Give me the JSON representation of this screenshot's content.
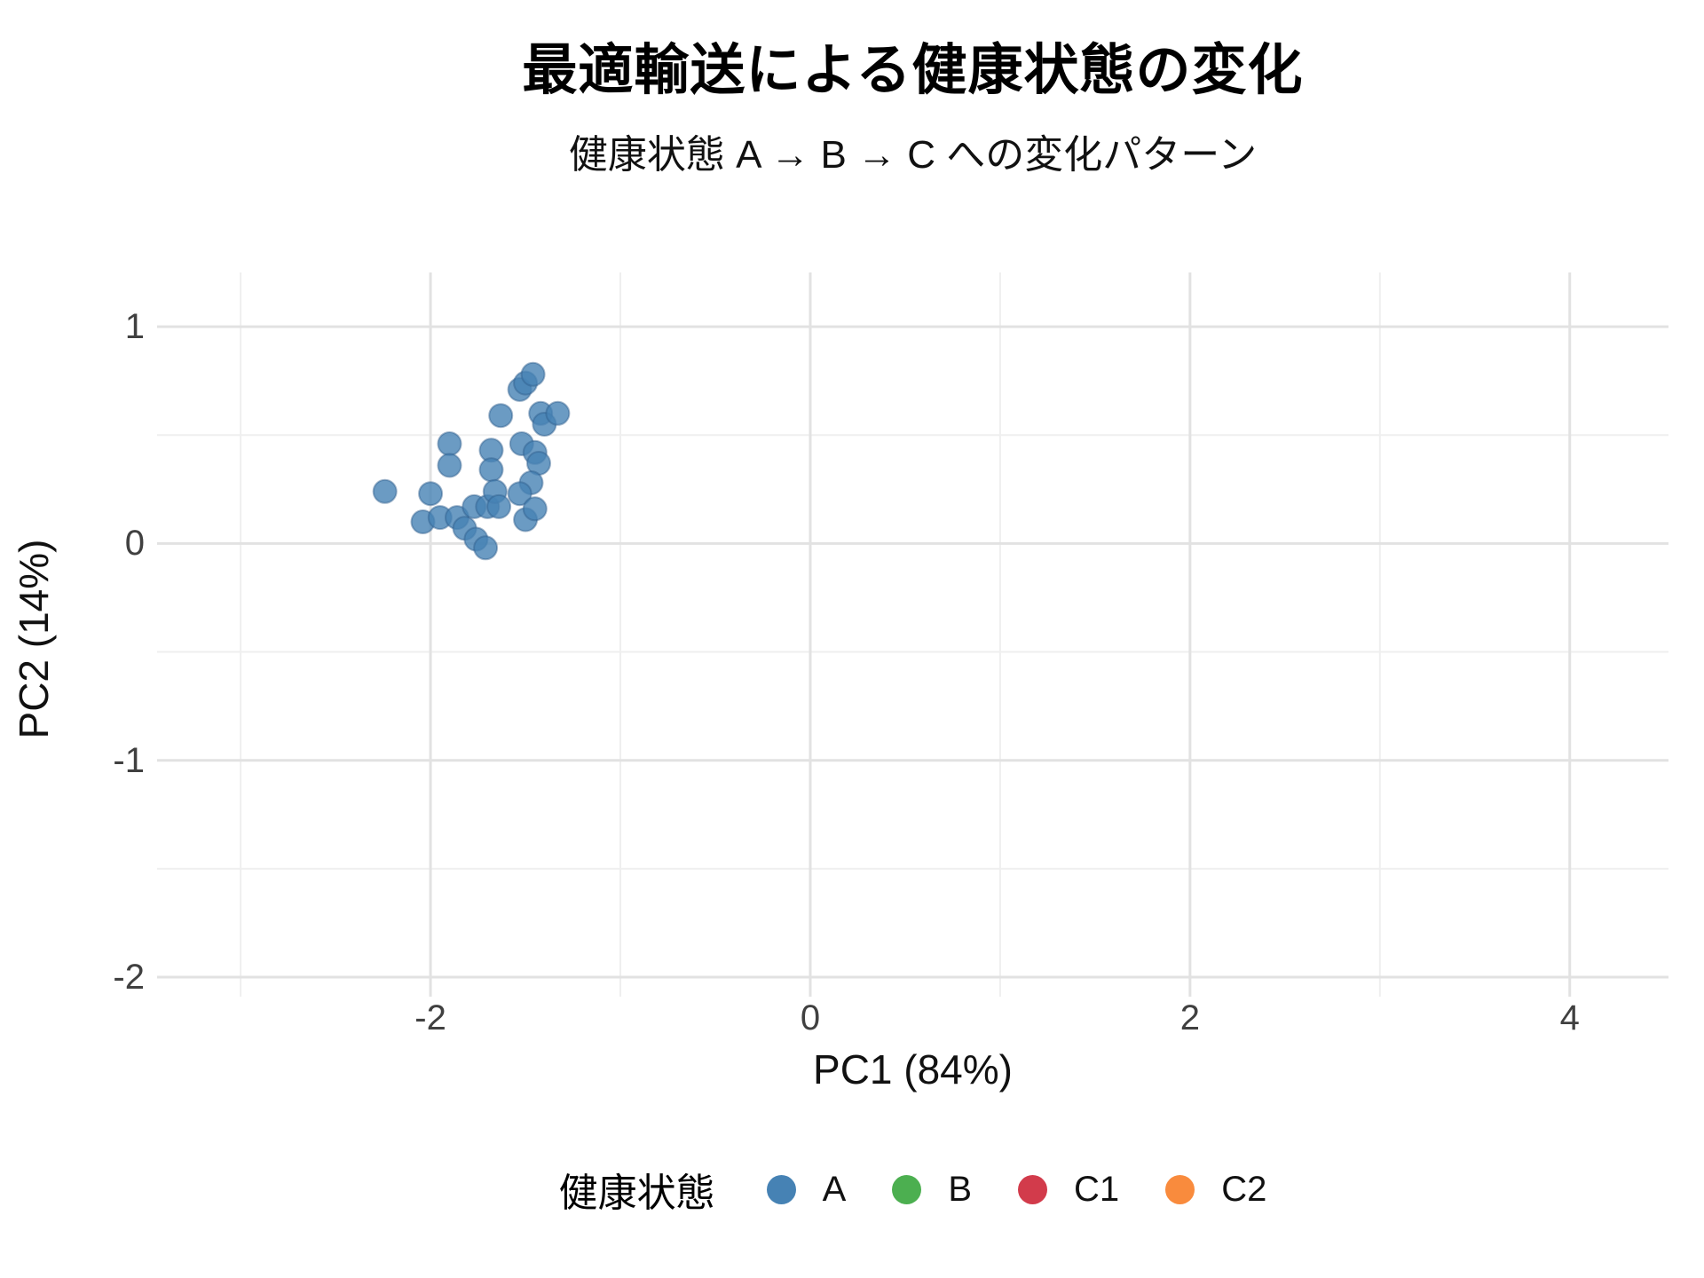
{
  "figure": {
    "title": "最適輸送による健康状態の変化",
    "subtitle": "健康状態 A → B → C への変化パターン",
    "background": "#ffffff"
  },
  "chart_data": {
    "type": "scatter",
    "title": "最適輸送による健康状態の変化",
    "subtitle": "健康状態 A → B → C への変化パターン",
    "xlabel": "PC1 (84%)",
    "ylabel": "PC2 (14%)",
    "xlim": [
      -3.44,
      4.52
    ],
    "ylim": [
      -2.09,
      1.25
    ],
    "x_major_ticks": [
      -2,
      0,
      2,
      4
    ],
    "x_major_tick_labels": [
      "-2",
      "0",
      "2",
      "4"
    ],
    "x_minor_ticks": [
      -3,
      -1,
      1,
      3
    ],
    "y_major_ticks": [
      1,
      0,
      -1,
      -2
    ],
    "y_major_tick_labels": [
      "1",
      "0",
      "-1",
      "-2"
    ],
    "y_minor_ticks": [
      0.5,
      -0.5,
      -1.5
    ],
    "grid": "major+minor",
    "grid_major_color": "#e2e2e2",
    "grid_minor_color": "#efefef",
    "marker": {
      "radius_px": 13,
      "opacity": 0.8,
      "stroke": "#2F5E8C"
    },
    "legend": {
      "title": "健康状態",
      "position": "bottom",
      "entries": [
        {
          "label": "A",
          "color": "#4682B4"
        },
        {
          "label": "B",
          "color": "#4CAF50"
        },
        {
          "label": "C1",
          "color": "#D23B4B"
        },
        {
          "label": "C2",
          "color": "#F98B3D"
        }
      ]
    },
    "series": [
      {
        "name": "A",
        "color": "#4682B4",
        "points": [
          [
            -2.24,
            0.24
          ],
          [
            -2.0,
            0.23
          ],
          [
            -2.04,
            0.1
          ],
          [
            -1.95,
            0.12
          ],
          [
            -1.9,
            0.46
          ],
          [
            -1.9,
            0.36
          ],
          [
            -1.86,
            0.12
          ],
          [
            -1.82,
            0.07
          ],
          [
            -1.77,
            0.17
          ],
          [
            -1.76,
            0.02
          ],
          [
            -1.71,
            -0.02
          ],
          [
            -1.7,
            0.17
          ],
          [
            -1.68,
            0.43
          ],
          [
            -1.68,
            0.34
          ],
          [
            -1.66,
            0.24
          ],
          [
            -1.64,
            0.17
          ],
          [
            -1.63,
            0.59
          ],
          [
            -1.53,
            0.71
          ],
          [
            -1.5,
            0.74
          ],
          [
            -1.46,
            0.78
          ],
          [
            -1.52,
            0.46
          ],
          [
            -1.45,
            0.42
          ],
          [
            -1.43,
            0.37
          ],
          [
            -1.47,
            0.28
          ],
          [
            -1.53,
            0.23
          ],
          [
            -1.5,
            0.11
          ],
          [
            -1.45,
            0.16
          ],
          [
            -1.42,
            0.6
          ],
          [
            -1.4,
            0.55
          ],
          [
            -1.33,
            0.6
          ]
        ]
      },
      {
        "name": "B",
        "color": "#4CAF50",
        "points": []
      },
      {
        "name": "C1",
        "color": "#D23B4B",
        "points": []
      },
      {
        "name": "C2",
        "color": "#F98B3D",
        "points": []
      }
    ]
  }
}
